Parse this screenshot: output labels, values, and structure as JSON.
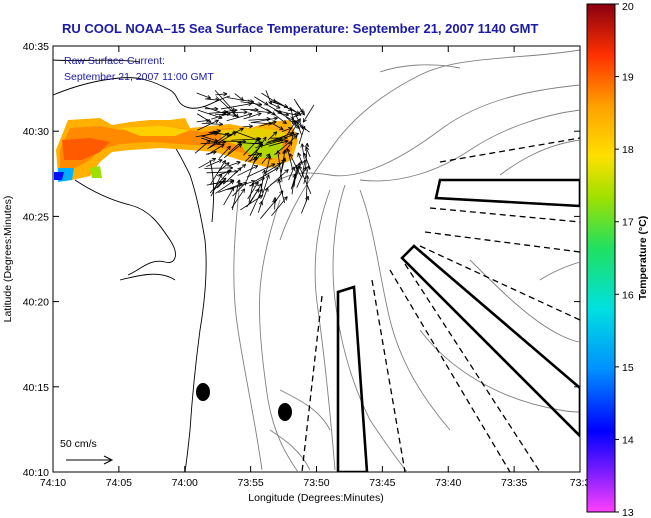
{
  "title": "RU COOL  NOAA–15  Sea Surface Temperature:  September 21, 2007 1140 GMT",
  "current_note": {
    "line1": "Raw Surface Current:",
    "line2": "September 21, 2007 11:00 GMT"
  },
  "scale_label": "50 cm/s",
  "x_axis": {
    "label": "Longitude (Degrees:Minutes)",
    "ticks": [
      "74:10",
      "74:05",
      "74:00",
      "73:55",
      "73:50",
      "73:45",
      "73:40",
      "73:35",
      "73:3"
    ]
  },
  "y_axis": {
    "label": "Latitude (Degrees:Minutes)",
    "ticks": [
      "40:35",
      "40:30",
      "40:25",
      "40:20",
      "40:15",
      "40:10"
    ]
  },
  "colorbar": {
    "label": "Temperature (°C)",
    "min": 13,
    "max": 20,
    "ticks": [
      "20",
      "19",
      "18",
      "17",
      "16",
      "15",
      "14",
      "13"
    ]
  },
  "colors": {
    "title_text": "#1a1aa8",
    "contour": "#808080"
  },
  "map_features": {
    "sst_patch_present": true,
    "current_vectors_present": true,
    "shipping_lanes_dashed": true,
    "outlined_lanes": 3,
    "black_markers": 2
  }
}
